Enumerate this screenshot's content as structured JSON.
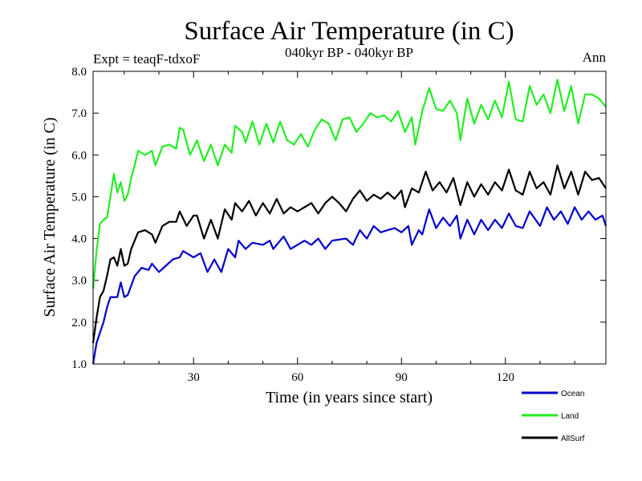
{
  "chart_data": {
    "type": "line",
    "title": "Surface Air Temperature (in C)",
    "subtitle": "040kyr BP - 040kyr BP",
    "left_note": "Expt = teaqF-tdxoF",
    "right_note": "Ann",
    "xlabel": "Time (in years since start)",
    "ylabel": "Surface Air Temperature (in C)",
    "xlim": [
      1,
      149
    ],
    "ylim": [
      1.0,
      8.0
    ],
    "xticks": [
      30,
      60,
      90,
      120
    ],
    "xtick_labels": [
      "30",
      "60",
      "90",
      "120"
    ],
    "yticks": [
      1.0,
      2.0,
      3.0,
      4.0,
      5.0,
      6.0,
      7.0,
      8.0
    ],
    "ytick_labels": [
      "1.0",
      "2.0",
      "3.0",
      "4.0",
      "5.0",
      "6.0",
      "7.0",
      "8.0"
    ],
    "legend_position": "bottom-right",
    "series": [
      {
        "name": "Ocean",
        "color": "#0000cc",
        "anchors": [
          [
            1,
            1.0
          ],
          [
            2,
            1.5
          ],
          [
            3,
            1.75
          ],
          [
            4,
            2.0
          ],
          [
            5,
            2.35
          ],
          [
            6,
            2.6
          ],
          [
            7,
            2.6
          ],
          [
            8,
            2.6
          ],
          [
            9,
            2.95
          ],
          [
            10,
            2.6
          ],
          [
            11,
            2.65
          ],
          [
            13,
            3.1
          ],
          [
            15,
            3.3
          ],
          [
            17,
            3.25
          ],
          [
            18,
            3.4
          ],
          [
            20,
            3.2
          ],
          [
            22,
            3.35
          ],
          [
            24,
            3.5
          ],
          [
            26,
            3.55
          ],
          [
            27,
            3.7
          ],
          [
            30,
            3.55
          ],
          [
            32,
            3.65
          ],
          [
            34,
            3.2
          ],
          [
            36,
            3.5
          ],
          [
            38,
            3.2
          ],
          [
            40,
            3.75
          ],
          [
            42,
            3.55
          ],
          [
            43,
            3.95
          ],
          [
            45,
            3.75
          ],
          [
            47,
            3.9
          ],
          [
            50,
            3.85
          ],
          [
            52,
            3.95
          ],
          [
            53,
            3.75
          ],
          [
            56,
            4.05
          ],
          [
            58,
            3.75
          ],
          [
            62,
            3.95
          ],
          [
            64,
            3.85
          ],
          [
            66,
            4.0
          ],
          [
            68,
            3.75
          ],
          [
            70,
            3.95
          ],
          [
            74,
            4.0
          ],
          [
            76,
            3.85
          ],
          [
            78,
            4.2
          ],
          [
            80,
            4.0
          ],
          [
            82,
            4.3
          ],
          [
            84,
            4.15
          ],
          [
            88,
            4.25
          ],
          [
            90,
            4.15
          ],
          [
            92,
            4.3
          ],
          [
            93,
            3.85
          ],
          [
            95,
            4.2
          ],
          [
            96,
            4.1
          ],
          [
            98,
            4.7
          ],
          [
            100,
            4.25
          ],
          [
            102,
            4.5
          ],
          [
            104,
            4.3
          ],
          [
            106,
            4.55
          ],
          [
            107,
            4.0
          ],
          [
            109,
            4.45
          ],
          [
            111,
            4.1
          ],
          [
            113,
            4.45
          ],
          [
            115,
            4.2
          ],
          [
            117,
            4.45
          ],
          [
            119,
            4.25
          ],
          [
            121,
            4.6
          ],
          [
            123,
            4.3
          ],
          [
            125,
            4.25
          ],
          [
            127,
            4.65
          ],
          [
            130,
            4.3
          ],
          [
            132,
            4.75
          ],
          [
            134,
            4.45
          ],
          [
            136,
            4.65
          ],
          [
            138,
            4.35
          ],
          [
            140,
            4.75
          ],
          [
            142,
            4.45
          ],
          [
            144,
            4.65
          ],
          [
            146,
            4.45
          ],
          [
            148,
            4.55
          ],
          [
            149,
            4.3
          ]
        ]
      },
      {
        "name": "Land",
        "color": "#22ee22",
        "anchors": [
          [
            1,
            2.8
          ],
          [
            2,
            3.7
          ],
          [
            3,
            4.35
          ],
          [
            4,
            4.45
          ],
          [
            5,
            4.5
          ],
          [
            6,
            5.0
          ],
          [
            7,
            5.55
          ],
          [
            8,
            5.1
          ],
          [
            9,
            5.35
          ],
          [
            10,
            4.9
          ],
          [
            11,
            5.05
          ],
          [
            12,
            5.45
          ],
          [
            13,
            5.75
          ],
          [
            14,
            6.1
          ],
          [
            16,
            6.0
          ],
          [
            18,
            6.1
          ],
          [
            19,
            5.75
          ],
          [
            21,
            6.2
          ],
          [
            23,
            6.25
          ],
          [
            25,
            6.15
          ],
          [
            26,
            6.65
          ],
          [
            27,
            6.6
          ],
          [
            29,
            6.0
          ],
          [
            31,
            6.35
          ],
          [
            33,
            5.85
          ],
          [
            35,
            6.25
          ],
          [
            37,
            5.75
          ],
          [
            39,
            6.25
          ],
          [
            41,
            6.05
          ],
          [
            42,
            6.7
          ],
          [
            44,
            6.55
          ],
          [
            45,
            6.3
          ],
          [
            47,
            6.8
          ],
          [
            49,
            6.25
          ],
          [
            51,
            6.75
          ],
          [
            53,
            6.3
          ],
          [
            55,
            6.8
          ],
          [
            57,
            6.35
          ],
          [
            59,
            6.25
          ],
          [
            61,
            6.5
          ],
          [
            63,
            6.2
          ],
          [
            65,
            6.6
          ],
          [
            67,
            6.85
          ],
          [
            69,
            6.75
          ],
          [
            71,
            6.35
          ],
          [
            73,
            6.85
          ],
          [
            75,
            6.9
          ],
          [
            77,
            6.55
          ],
          [
            79,
            6.75
          ],
          [
            81,
            7.0
          ],
          [
            83,
            6.9
          ],
          [
            85,
            6.95
          ],
          [
            87,
            6.8
          ],
          [
            89,
            7.05
          ],
          [
            91,
            6.55
          ],
          [
            93,
            6.9
          ],
          [
            94,
            6.25
          ],
          [
            96,
            7.05
          ],
          [
            98,
            7.6
          ],
          [
            100,
            7.1
          ],
          [
            102,
            7.05
          ],
          [
            104,
            7.3
          ],
          [
            106,
            7.0
          ],
          [
            107,
            6.35
          ],
          [
            109,
            7.35
          ],
          [
            111,
            6.75
          ],
          [
            113,
            7.2
          ],
          [
            115,
            6.85
          ],
          [
            117,
            7.3
          ],
          [
            119,
            6.9
          ],
          [
            121,
            7.75
          ],
          [
            123,
            6.85
          ],
          [
            125,
            6.8
          ],
          [
            127,
            7.65
          ],
          [
            129,
            7.2
          ],
          [
            131,
            7.45
          ],
          [
            133,
            7.0
          ],
          [
            135,
            7.8
          ],
          [
            137,
            7.05
          ],
          [
            139,
            7.65
          ],
          [
            141,
            6.75
          ],
          [
            143,
            7.45
          ],
          [
            145,
            7.45
          ],
          [
            147,
            7.35
          ],
          [
            149,
            7.15
          ]
        ]
      },
      {
        "name": "AllSurf",
        "color": "#000000",
        "anchors": [
          [
            1,
            1.5
          ],
          [
            2,
            2.1
          ],
          [
            3,
            2.6
          ],
          [
            4,
            2.75
          ],
          [
            5,
            3.1
          ],
          [
            6,
            3.5
          ],
          [
            7,
            3.55
          ],
          [
            8,
            3.35
          ],
          [
            9,
            3.75
          ],
          [
            10,
            3.35
          ],
          [
            11,
            3.4
          ],
          [
            12,
            3.75
          ],
          [
            14,
            4.15
          ],
          [
            16,
            4.2
          ],
          [
            18,
            4.1
          ],
          [
            19,
            3.9
          ],
          [
            21,
            4.3
          ],
          [
            23,
            4.4
          ],
          [
            25,
            4.4
          ],
          [
            26,
            4.65
          ],
          [
            28,
            4.3
          ],
          [
            30,
            4.55
          ],
          [
            31,
            4.55
          ],
          [
            33,
            4.0
          ],
          [
            35,
            4.45
          ],
          [
            37,
            4.0
          ],
          [
            39,
            4.7
          ],
          [
            41,
            4.45
          ],
          [
            42,
            4.85
          ],
          [
            44,
            4.65
          ],
          [
            46,
            4.9
          ],
          [
            48,
            4.55
          ],
          [
            50,
            4.85
          ],
          [
            52,
            4.6
          ],
          [
            54,
            4.95
          ],
          [
            56,
            4.6
          ],
          [
            58,
            4.75
          ],
          [
            60,
            4.65
          ],
          [
            62,
            4.75
          ],
          [
            64,
            4.85
          ],
          [
            66,
            4.6
          ],
          [
            68,
            4.85
          ],
          [
            70,
            5.0
          ],
          [
            72,
            4.85
          ],
          [
            74,
            4.65
          ],
          [
            76,
            4.95
          ],
          [
            78,
            5.15
          ],
          [
            80,
            4.9
          ],
          [
            82,
            5.05
          ],
          [
            84,
            4.95
          ],
          [
            86,
            5.1
          ],
          [
            88,
            4.95
          ],
          [
            90,
            5.15
          ],
          [
            91,
            4.75
          ],
          [
            93,
            5.2
          ],
          [
            95,
            5.1
          ],
          [
            97,
            5.6
          ],
          [
            99,
            5.15
          ],
          [
            101,
            5.35
          ],
          [
            103,
            5.1
          ],
          [
            105,
            5.45
          ],
          [
            107,
            4.8
          ],
          [
            109,
            5.35
          ],
          [
            111,
            5.0
          ],
          [
            113,
            5.3
          ],
          [
            115,
            5.05
          ],
          [
            117,
            5.35
          ],
          [
            119,
            5.15
          ],
          [
            121,
            5.65
          ],
          [
            123,
            5.15
          ],
          [
            125,
            5.05
          ],
          [
            127,
            5.6
          ],
          [
            129,
            5.2
          ],
          [
            131,
            5.35
          ],
          [
            133,
            5.05
          ],
          [
            135,
            5.75
          ],
          [
            137,
            5.2
          ],
          [
            139,
            5.6
          ],
          [
            141,
            5.05
          ],
          [
            143,
            5.6
          ],
          [
            145,
            5.4
          ],
          [
            147,
            5.45
          ],
          [
            149,
            5.2
          ]
        ]
      }
    ]
  }
}
